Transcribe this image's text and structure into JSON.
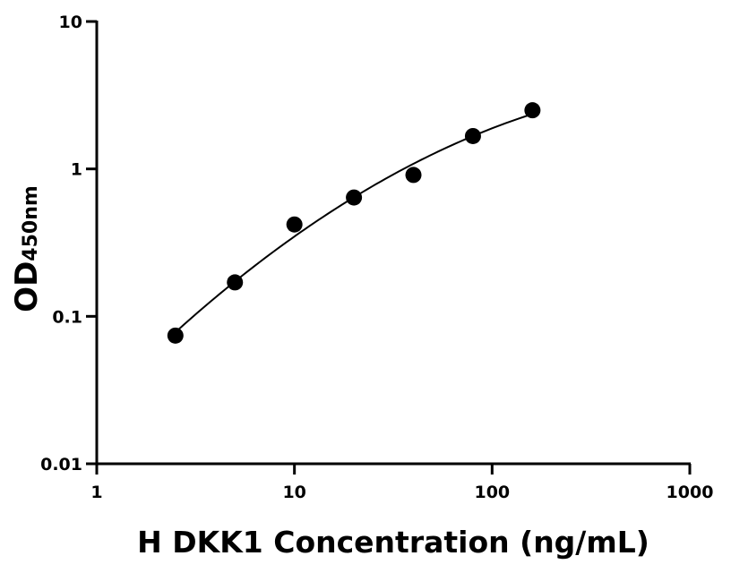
{
  "chart_data": {
    "type": "scatter",
    "xlabel": "H DKK1 Concentration (ng/mL)",
    "ylabel": {
      "main": "OD",
      "subscript": "450nm"
    },
    "xscale": "log",
    "yscale": "log",
    "xlim": [
      1,
      1000
    ],
    "ylim": [
      0.01,
      10
    ],
    "xticks": [
      {
        "value": 1,
        "label": "1"
      },
      {
        "value": 10,
        "label": "10"
      },
      {
        "value": 100,
        "label": "100"
      },
      {
        "value": 1000,
        "label": "1000"
      }
    ],
    "yticks": [
      {
        "value": 0.01,
        "label": "0.01"
      },
      {
        "value": 0.1,
        "label": "0.1"
      },
      {
        "value": 1,
        "label": "1"
      },
      {
        "value": 10,
        "label": "10"
      }
    ],
    "series": [
      {
        "points": [
          {
            "x": 2.5,
            "y": 0.074
          },
          {
            "x": 5,
            "y": 0.17
          },
          {
            "x": 10,
            "y": 0.42
          },
          {
            "x": 20,
            "y": 0.64
          },
          {
            "x": 40,
            "y": 0.91
          },
          {
            "x": 80,
            "y": 1.67
          },
          {
            "x": 160,
            "y": 2.5
          }
        ]
      }
    ],
    "fit_curve": true,
    "grid": false,
    "colors": {
      "points": "#000000",
      "curve": "#000000",
      "axes": "#000000"
    }
  }
}
